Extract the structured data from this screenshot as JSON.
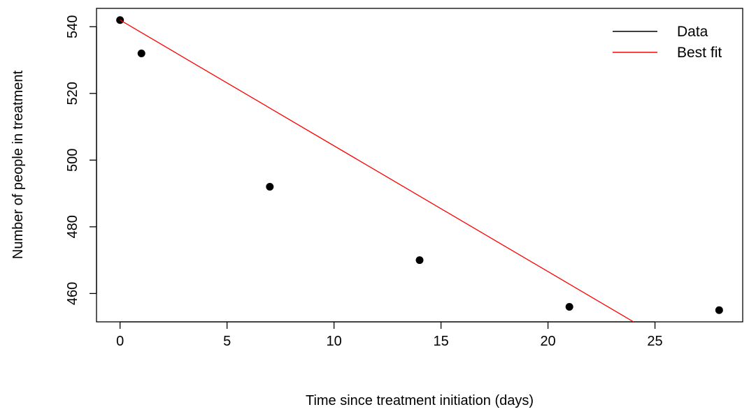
{
  "chart_data": {
    "type": "scatter",
    "title": "",
    "xlabel": "Time since treatment initiation (days)",
    "ylabel": "Number of people in treatment",
    "xlim": [
      -1.1,
      29.1
    ],
    "ylim": [
      451.5,
      545.5
    ],
    "xticks": [
      0,
      5,
      10,
      15,
      20,
      25
    ],
    "yticks": [
      460,
      480,
      500,
      520,
      540
    ],
    "grid": false,
    "legend_position": "top-right",
    "series": [
      {
        "name": "Data",
        "kind": "points",
        "color": "#000000",
        "legend_color": "#000000",
        "x": [
          0,
          1,
          7,
          14,
          21,
          28
        ],
        "y": [
          542,
          532,
          492,
          470,
          456,
          455
        ]
      },
      {
        "name": "Best fit",
        "kind": "line",
        "color": "#ff0000",
        "x": [
          0,
          24
        ],
        "y": [
          542,
          451.5
        ]
      }
    ]
  }
}
